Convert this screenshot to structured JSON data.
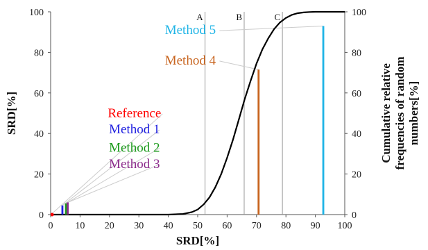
{
  "chart_data": {
    "type": "bar",
    "xlabel": "SRD[%]",
    "ylabel": "SRD[%]",
    "y2label_lines": [
      "Cumulative relative",
      "frequencies of random",
      "numbers[%]"
    ],
    "xlim": [
      0,
      100
    ],
    "ylim": [
      0,
      100
    ],
    "xticks": [
      "0",
      "10",
      "20",
      "30",
      "40",
      "50",
      "60",
      "70",
      "80",
      "90",
      "100"
    ],
    "yticks": [
      "0",
      "20",
      "40",
      "60",
      "80",
      "100"
    ],
    "y2ticks": [
      "0",
      "20",
      "40",
      "60",
      "80",
      "100"
    ],
    "vertical_lines": [
      {
        "label": "A",
        "x": 52.5
      },
      {
        "label": "B",
        "x": 65.8
      },
      {
        "label": "C",
        "x": 78.8
      }
    ],
    "series": [
      {
        "name": "Reference",
        "x": 0.5,
        "value": 0.5,
        "color": "#ff0000",
        "label_x": 28.5,
        "label_y": 48
      },
      {
        "name": "Method 1",
        "x": 4.0,
        "value": 4.5,
        "color": "#1f1fe0",
        "label_x": 28.5,
        "label_y": 40
      },
      {
        "name": "Method 2",
        "x": 5.2,
        "value": 5.5,
        "color": "#1a9a1a",
        "label_x": 28.5,
        "label_y": 31
      },
      {
        "name": "Method 3",
        "x": 5.8,
        "value": 6.0,
        "color": "#8b2a8b",
        "label_x": 28.5,
        "label_y": 23
      },
      {
        "name": "Method 4",
        "x": 70.7,
        "value": 71.5,
        "color": "#c8641e",
        "label_x": 47.5,
        "label_y": 74
      },
      {
        "name": "Method 5",
        "x": 92.7,
        "value": 93.0,
        "color": "#1eb4e6",
        "label_x": 47.5,
        "label_y": 89
      }
    ],
    "cumulative_curve": {
      "x": [
        0,
        10,
        20,
        30,
        40,
        45,
        48,
        50,
        52,
        54,
        56,
        58,
        60,
        62,
        64,
        66,
        68,
        70,
        72,
        74,
        76,
        78,
        80,
        82,
        84,
        86,
        88,
        90,
        95,
        100
      ],
      "y": [
        0,
        0,
        0,
        0,
        0,
        0.3,
        1.2,
        2.5,
        5,
        8.5,
        13.5,
        20,
        28,
        37,
        47,
        57,
        66,
        74.5,
        81.5,
        87,
        91.5,
        94.8,
        97,
        98.5,
        99.3,
        99.7,
        99.9,
        100,
        100,
        100
      ],
      "color": "#000000"
    },
    "grid": false
  }
}
